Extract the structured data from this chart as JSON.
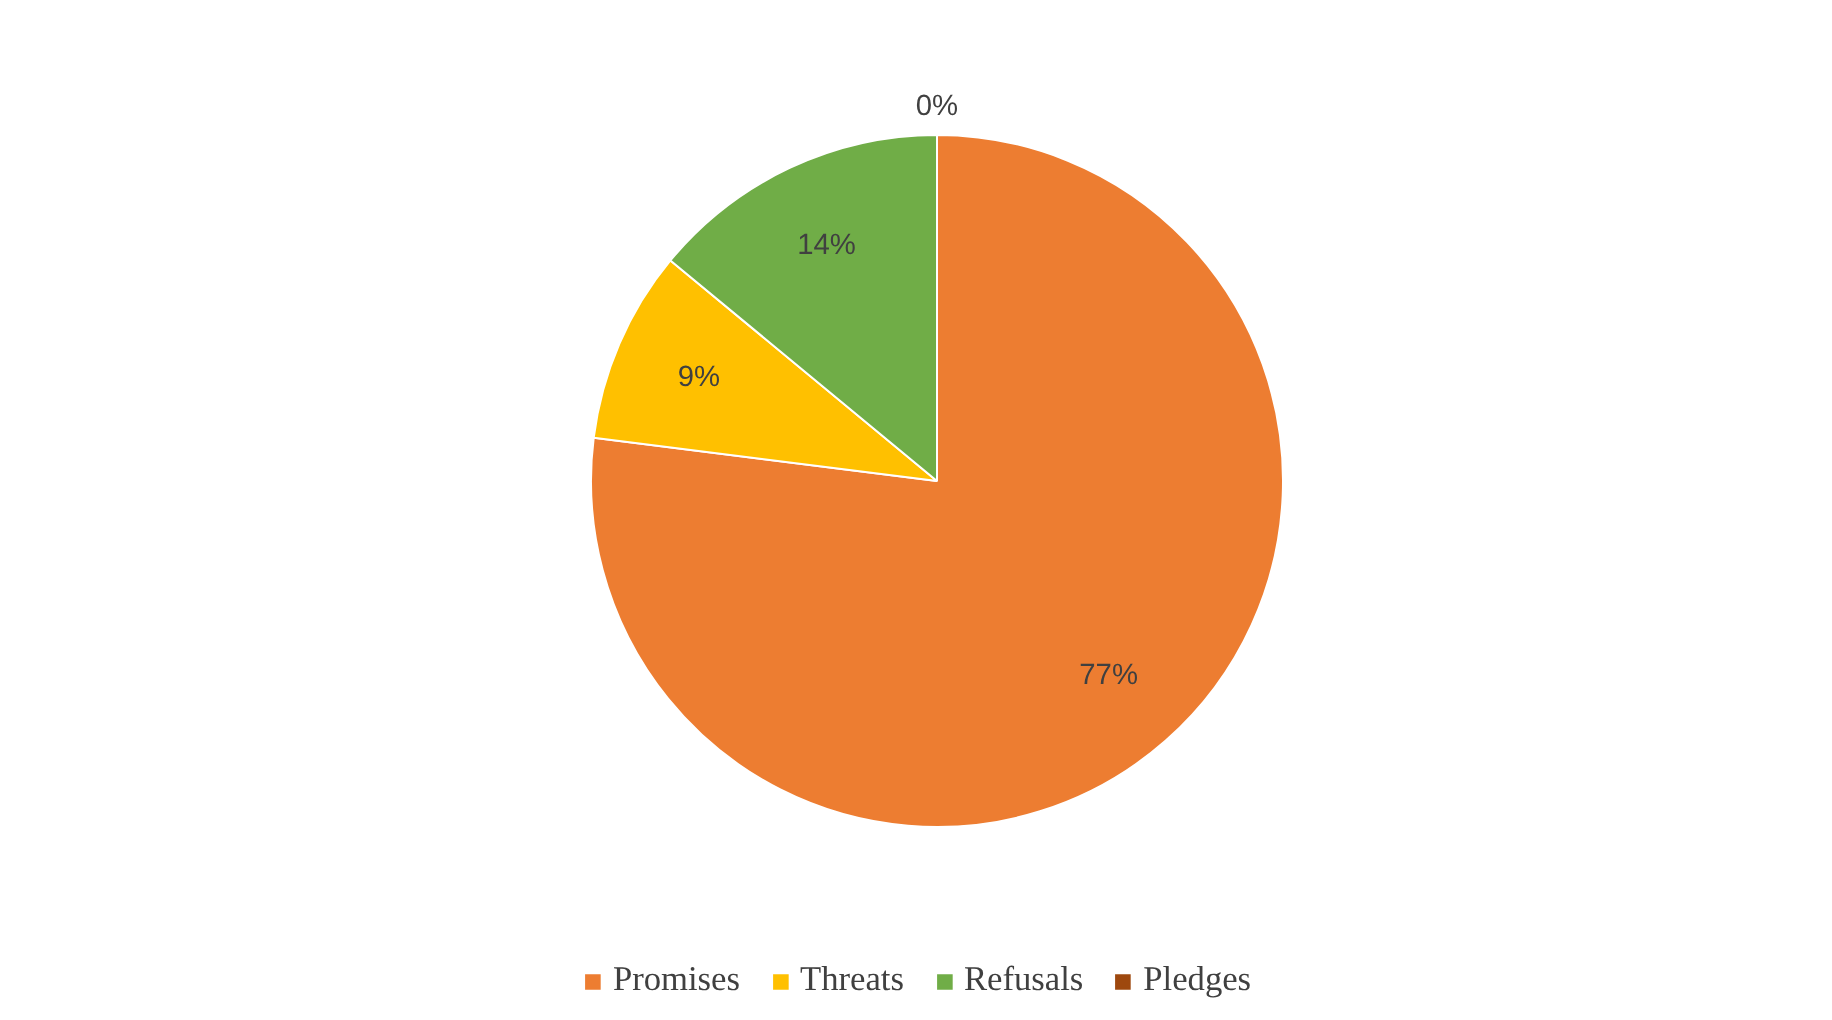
{
  "chart_data": {
    "type": "pie",
    "categories": [
      "Promises",
      "Threats",
      "Refusals",
      "Pledges"
    ],
    "values": [
      77,
      9,
      14,
      0
    ],
    "colors": [
      "#ed7d31",
      "#ffc000",
      "#70ad47",
      "#9e480e"
    ],
    "value_labels": [
      "77%",
      "9%",
      "14%",
      "0%"
    ],
    "legend": "bottom"
  }
}
